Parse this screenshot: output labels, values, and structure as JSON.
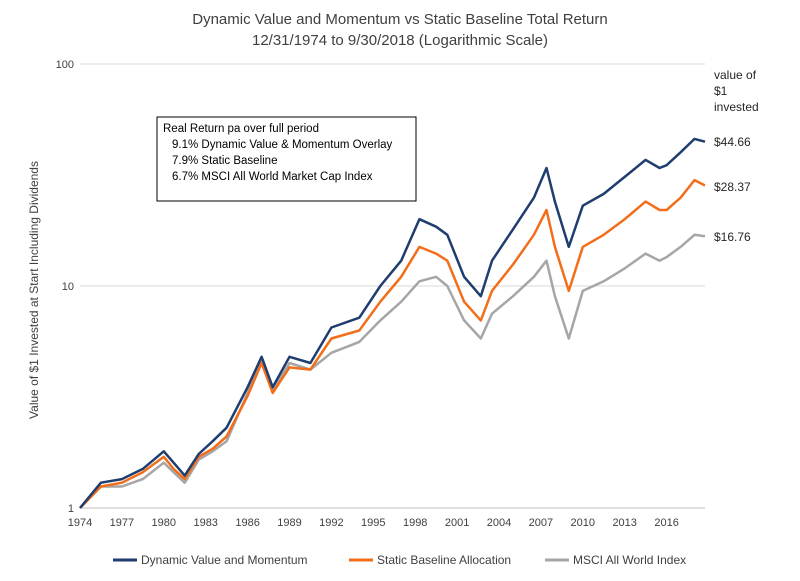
{
  "chart_data": {
    "type": "line",
    "title": "Dynamic Value and Momentum vs Static Baseline Total Return",
    "subtitle": "12/31/1974 to 9/30/2018 (Logarithmic Scale)",
    "ylabel": "Value of $1 Invested at Start Including Dividends",
    "xlabel": "",
    "y_scale": "log",
    "ylim": [
      1,
      100
    ],
    "y_ticks": [
      "1",
      "10",
      "100"
    ],
    "xlim": [
      1974.0,
      2018.75
    ],
    "x_ticks": [
      "1974",
      "1977",
      "1980",
      "1983",
      "1986",
      "1989",
      "1992",
      "1995",
      "1998",
      "2001",
      "2004",
      "2007",
      "2010",
      "2013",
      "2016"
    ],
    "grid": "horizontal",
    "legend_position": "bottom",
    "series": [
      {
        "name": "Dynamic Value and Momentum",
        "color": "#1f3d6e",
        "x": [
          1974.0,
          1975.5,
          1977.0,
          1978.5,
          1980.0,
          1980.7,
          1981.5,
          1982.5,
          1983.5,
          1984.5,
          1986.0,
          1987.0,
          1987.8,
          1989.0,
          1990.5,
          1992.0,
          1994.0,
          1995.5,
          1997.0,
          1998.3,
          1999.5,
          2000.3,
          2001.5,
          2002.7,
          2003.5,
          2005.0,
          2006.5,
          2007.4,
          2008.0,
          2009.0,
          2010.0,
          2011.5,
          2013.0,
          2014.5,
          2015.5,
          2016.0,
          2017.0,
          2018.0,
          2018.75
        ],
        "values": [
          1.0,
          1.3,
          1.35,
          1.5,
          1.8,
          1.6,
          1.4,
          1.75,
          2.0,
          2.3,
          3.5,
          4.8,
          3.5,
          4.8,
          4.5,
          6.5,
          7.2,
          10.0,
          13.0,
          20.0,
          18.5,
          17.0,
          11.0,
          9.0,
          13.0,
          18.0,
          25.0,
          34.0,
          24.0,
          15.0,
          23.0,
          26.0,
          31.0,
          37.0,
          34.0,
          35.0,
          40.0,
          46.0,
          44.66
        ]
      },
      {
        "name": "Static Baseline Allocation",
        "color": "#f26e1a",
        "x": [
          1974.0,
          1975.5,
          1977.0,
          1978.5,
          1980.0,
          1980.7,
          1981.5,
          1982.5,
          1983.5,
          1984.5,
          1986.0,
          1987.0,
          1987.8,
          1989.0,
          1990.5,
          1992.0,
          1994.0,
          1995.5,
          1997.0,
          1998.3,
          1999.5,
          2000.3,
          2001.5,
          2002.7,
          2003.5,
          2005.0,
          2006.5,
          2007.4,
          2008.0,
          2009.0,
          2010.0,
          2011.5,
          2013.0,
          2014.5,
          2015.5,
          2016.0,
          2017.0,
          2018.0,
          2018.75
        ],
        "values": [
          1.0,
          1.25,
          1.3,
          1.45,
          1.7,
          1.5,
          1.35,
          1.7,
          1.85,
          2.1,
          3.2,
          4.5,
          3.3,
          4.3,
          4.2,
          5.8,
          6.3,
          8.5,
          11.0,
          15.0,
          14.0,
          13.0,
          8.5,
          7.0,
          9.5,
          12.5,
          17.0,
          22.0,
          15.0,
          9.5,
          15.0,
          17.0,
          20.0,
          24.0,
          22.0,
          22.0,
          25.0,
          30.0,
          28.37
        ]
      },
      {
        "name": "MSCI All World Index",
        "color": "#a6a6a6",
        "x": [
          1974.0,
          1975.5,
          1977.0,
          1978.5,
          1980.0,
          1980.7,
          1981.5,
          1982.5,
          1983.5,
          1984.5,
          1986.0,
          1987.0,
          1987.8,
          1989.0,
          1990.5,
          1992.0,
          1994.0,
          1995.5,
          1997.0,
          1998.3,
          1999.5,
          2000.3,
          2001.5,
          2002.7,
          2003.5,
          2005.0,
          2006.5,
          2007.4,
          2008.0,
          2009.0,
          2010.0,
          2011.5,
          2013.0,
          2014.5,
          2015.5,
          2016.0,
          2017.0,
          2018.0,
          2018.75
        ],
        "values": [
          1.0,
          1.25,
          1.25,
          1.35,
          1.6,
          1.45,
          1.3,
          1.65,
          1.8,
          2.0,
          3.3,
          4.6,
          3.4,
          4.5,
          4.2,
          5.0,
          5.6,
          7.0,
          8.5,
          10.5,
          11.0,
          10.0,
          7.0,
          5.8,
          7.5,
          9.0,
          11.0,
          13.0,
          9.0,
          5.8,
          9.5,
          10.5,
          12.0,
          14.0,
          13.0,
          13.5,
          15.0,
          17.0,
          16.76
        ]
      }
    ],
    "end_labels": {
      "header": [
        "value of",
        "$1",
        "invested"
      ],
      "values": [
        "$44.66",
        "$28.37",
        "$16.76"
      ]
    },
    "annotation_box": {
      "title": "Real Return pa over full period",
      "lines": [
        "9.1%  Dynamic Value & Momentum Overlay",
        "7.9%  Static Baseline",
        "6.7%  MSCI All World Market Cap Index"
      ]
    }
  }
}
